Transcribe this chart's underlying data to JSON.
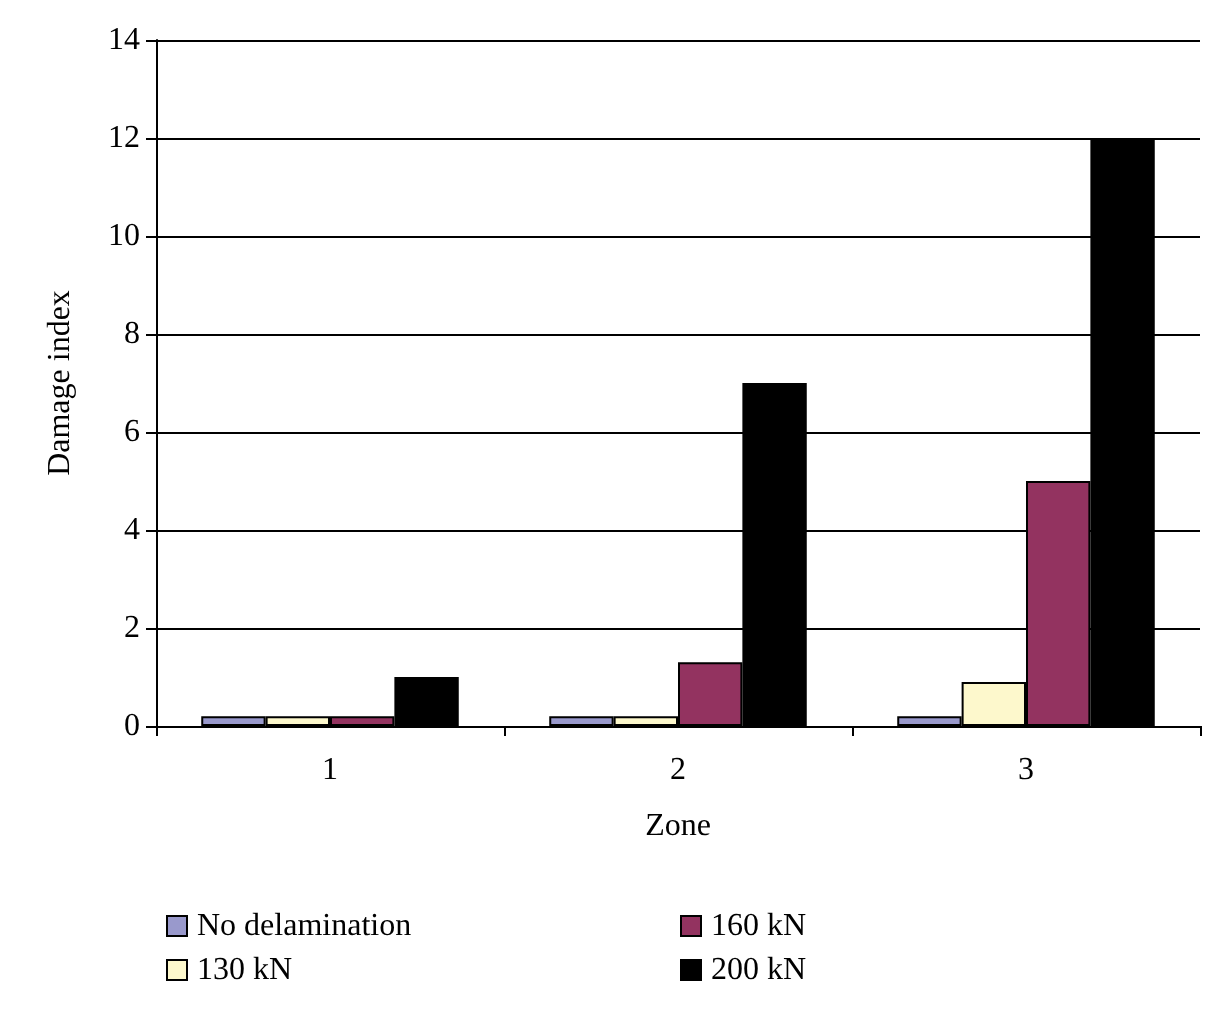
{
  "chart_data": {
    "type": "bar",
    "xlabel": "Zone",
    "ylabel": "Damage index",
    "categories": [
      "1",
      "2",
      "3"
    ],
    "series": [
      {
        "name": "No delamination",
        "color": "#9999cc",
        "values": [
          0.2,
          0.2,
          0.2
        ]
      },
      {
        "name": "130 kN",
        "color": "#fdf8cc",
        "values": [
          0.2,
          0.2,
          0.9
        ]
      },
      {
        "name": "160 kN",
        "color": "#933360",
        "values": [
          0.2,
          1.3,
          5.0
        ]
      },
      {
        "name": "200 kN",
        "color": "#000000",
        "values": [
          1.0,
          7.0,
          12.0
        ]
      }
    ],
    "ylim": [
      0,
      14
    ],
    "yticks": [
      0,
      2,
      4,
      6,
      8,
      10,
      12,
      14
    ],
    "grid": "y",
    "legend": "bottom"
  }
}
